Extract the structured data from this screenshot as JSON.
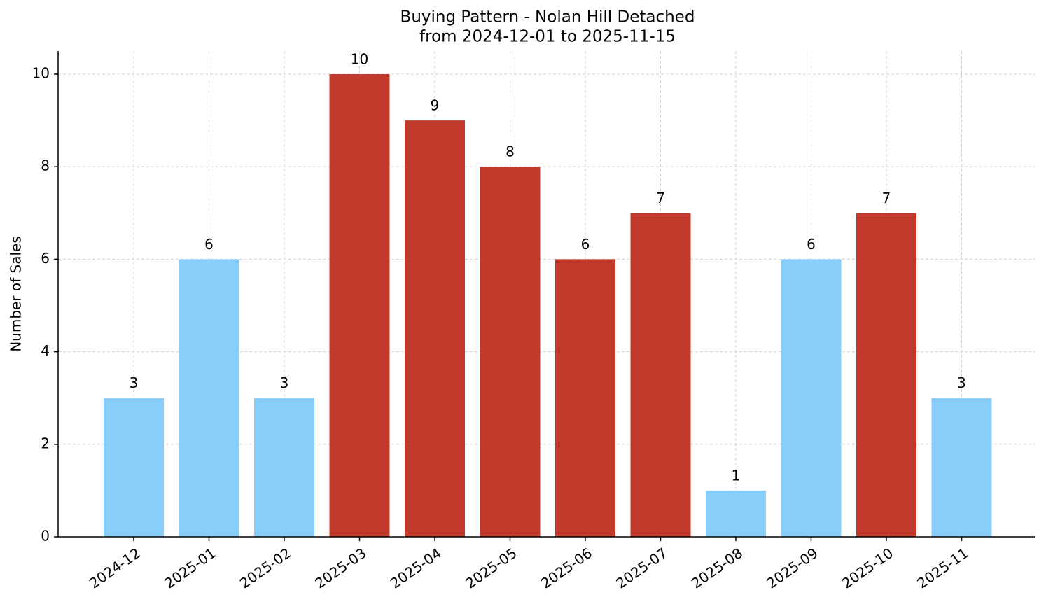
{
  "chart_data": {
    "type": "bar",
    "title": "Buying Pattern - Nolan Hill Detached",
    "subtitle": "from 2024-12-01 to 2025-11-15",
    "y_label": "Number of Sales",
    "categories": [
      "2024-12",
      "2025-01",
      "2025-02",
      "2025-03",
      "2025-04",
      "2025-05",
      "2025-06",
      "2025-07",
      "2025-08",
      "2025-09",
      "2025-10",
      "2025-11"
    ],
    "values": [
      3,
      6,
      3,
      10,
      9,
      8,
      6,
      7,
      1,
      6,
      7,
      3
    ],
    "colors": [
      "#87cefa",
      "#87cefa",
      "#87cefa",
      "#c0392b",
      "#c0392b",
      "#c0392b",
      "#c0392b",
      "#c0392b",
      "#87cefa",
      "#87cefa",
      "#c0392b",
      "#87cefa"
    ],
    "ylim": [
      0,
      10.5
    ],
    "yticks": [
      0,
      2,
      4,
      6,
      8,
      10
    ],
    "grid": true
  }
}
